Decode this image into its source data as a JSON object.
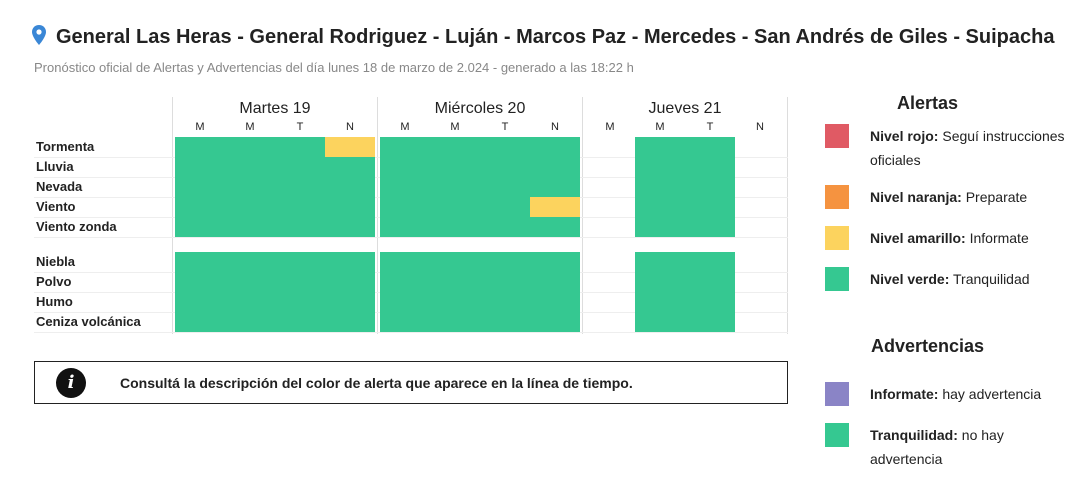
{
  "header": {
    "title": "General Las Heras - General Rodriguez - Luján - Marcos Paz - Mercedes - San Andrés de Giles - Suipacha",
    "subtitle": "Pronóstico oficial de Alertas y Advertencias del día lunes 18 de marzo de 2.024 - generado a las 18:22 h",
    "pin_icon": "map-pin-icon"
  },
  "colors": {
    "green": "#35c891",
    "yellow": "#fcd35e",
    "orange": "#f59340",
    "red": "#e05a64",
    "violet": "#8a84c6"
  },
  "days": [
    {
      "label": "Martes 19",
      "periods": [
        "M",
        "M",
        "T",
        "N"
      ]
    },
    {
      "label": "Miércoles 20",
      "periods": [
        "M",
        "M",
        "T",
        "N"
      ]
    },
    {
      "label": "Jueves 21",
      "periods": [
        "M",
        "M",
        "T",
        "N"
      ]
    }
  ],
  "rows": [
    {
      "label": "Tormenta",
      "levels": [
        "green",
        "green",
        "green",
        "yellow",
        "green",
        "green",
        "green",
        "green",
        "none",
        "green",
        "green",
        "none"
      ]
    },
    {
      "label": "Lluvia",
      "levels": [
        "green",
        "green",
        "green",
        "green",
        "green",
        "green",
        "green",
        "green",
        "none",
        "green",
        "green",
        "none"
      ]
    },
    {
      "label": "Nevada",
      "levels": [
        "green",
        "green",
        "green",
        "green",
        "green",
        "green",
        "green",
        "green",
        "none",
        "green",
        "green",
        "none"
      ]
    },
    {
      "label": "Viento",
      "levels": [
        "green",
        "green",
        "green",
        "green",
        "green",
        "green",
        "green",
        "yellow",
        "none",
        "green",
        "green",
        "none"
      ]
    },
    {
      "label": "Viento zonda",
      "levels": [
        "green",
        "green",
        "green",
        "green",
        "green",
        "green",
        "green",
        "green",
        "none",
        "green",
        "green",
        "none"
      ]
    },
    {
      "label": "Niebla",
      "levels": [
        "green",
        "green",
        "green",
        "green",
        "green",
        "green",
        "green",
        "green",
        "none",
        "green",
        "green",
        "none"
      ]
    },
    {
      "label": "Polvo",
      "levels": [
        "green",
        "green",
        "green",
        "green",
        "green",
        "green",
        "green",
        "green",
        "none",
        "green",
        "green",
        "none"
      ]
    },
    {
      "label": "Humo",
      "levels": [
        "green",
        "green",
        "green",
        "green",
        "green",
        "green",
        "green",
        "green",
        "none",
        "green",
        "green",
        "none"
      ]
    },
    {
      "label": "Ceniza volcánica",
      "levels": [
        "green",
        "green",
        "green",
        "green",
        "green",
        "green",
        "green",
        "green",
        "none",
        "green",
        "green",
        "none"
      ]
    }
  ],
  "info": {
    "icon": "info-icon",
    "icon_glyph": "i",
    "text": "Consultá la descripción del color de alerta que aparece en la línea de tiempo."
  },
  "legend": {
    "alertas_title": "Alertas",
    "alertas": [
      {
        "name": "Nivel rojo:",
        "desc": "Seguí instrucciones oficiales",
        "color": "#e05a64"
      },
      {
        "name": "Nivel naranja:",
        "desc": "Preparate",
        "color": "#f59340"
      },
      {
        "name": "Nivel amarillo:",
        "desc": "Informate",
        "color": "#fcd35e"
      },
      {
        "name": "Nivel verde:",
        "desc": "Tranquilidad",
        "color": "#35c891"
      }
    ],
    "advertencias_title": "Advertencias",
    "advertencias": [
      {
        "name": "Informate:",
        "desc": "hay advertencia",
        "color": "#8a84c6"
      },
      {
        "name": "Tranquilidad:",
        "desc": "no hay advertencia",
        "color": "#35c891"
      }
    ]
  }
}
